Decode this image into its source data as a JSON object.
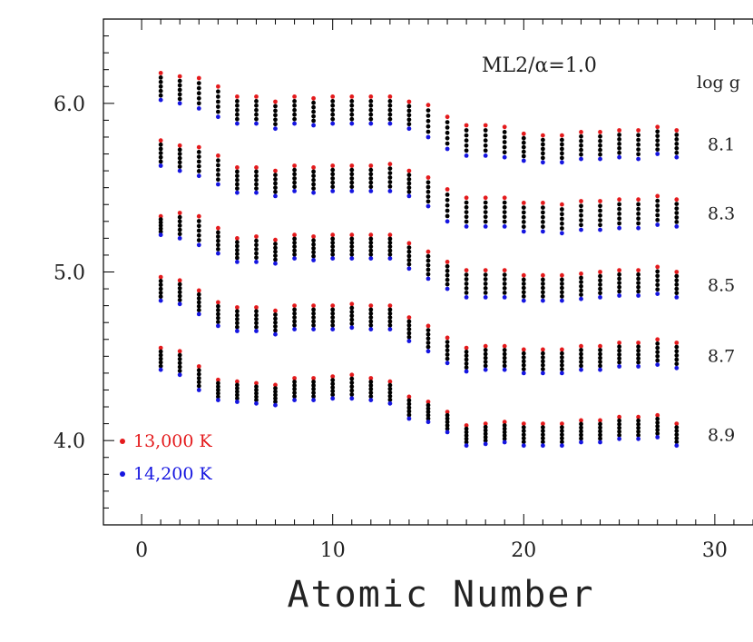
{
  "chart_data": {
    "type": "scatter",
    "annotation": "ML2/α=1.0",
    "xlabel": "Atomic Number",
    "ylabel": "",
    "xlim": [
      -2,
      32
    ],
    "ylim": [
      3.5,
      6.5
    ],
    "x_ticks": [
      "0",
      "10",
      "20",
      "30"
    ],
    "y_ticks": [
      "4.0",
      "5.0",
      "6.0"
    ],
    "right_header": "log g",
    "levels": [
      "8.1",
      "8.3",
      "8.5",
      "8.7",
      "8.9"
    ],
    "series": [
      {
        "name": "13,000 K",
        "color": "#e41a1c"
      },
      {
        "name": "14,200 K",
        "color": "#1515e0"
      }
    ],
    "intermediate_color": "#000000",
    "points_per_group": 7,
    "x": [
      1,
      2,
      3,
      4,
      5,
      6,
      7,
      8,
      9,
      10,
      11,
      12,
      13,
      14,
      15,
      16,
      17,
      18,
      19,
      20,
      21,
      22,
      23,
      24,
      25,
      26,
      27,
      28
    ],
    "groups": [
      {
        "log_g": "8.1",
        "red": [
          6.18,
          6.16,
          6.15,
          6.1,
          6.04,
          6.04,
          6.01,
          6.04,
          6.03,
          6.04,
          6.04,
          6.04,
          6.04,
          6.01,
          5.99,
          5.92,
          5.87,
          5.87,
          5.86,
          5.82,
          5.81,
          5.81,
          5.83,
          5.83,
          5.84,
          5.84,
          5.86,
          5.84
        ],
        "blue": [
          6.02,
          6.0,
          5.97,
          5.92,
          5.88,
          5.88,
          5.85,
          5.88,
          5.87,
          5.88,
          5.88,
          5.88,
          5.88,
          5.85,
          5.8,
          5.73,
          5.69,
          5.69,
          5.68,
          5.66,
          5.65,
          5.65,
          5.67,
          5.67,
          5.68,
          5.67,
          5.7,
          5.68
        ]
      },
      {
        "log_g": "8.3",
        "red": [
          5.78,
          5.75,
          5.74,
          5.69,
          5.62,
          5.62,
          5.6,
          5.63,
          5.62,
          5.63,
          5.63,
          5.63,
          5.64,
          5.6,
          5.56,
          5.49,
          5.44,
          5.44,
          5.44,
          5.41,
          5.41,
          5.4,
          5.42,
          5.42,
          5.43,
          5.43,
          5.45,
          5.43
        ],
        "blue": [
          5.63,
          5.6,
          5.57,
          5.52,
          5.47,
          5.47,
          5.45,
          5.48,
          5.47,
          5.48,
          5.48,
          5.48,
          5.48,
          5.45,
          5.39,
          5.3,
          5.27,
          5.27,
          5.27,
          5.24,
          5.24,
          5.23,
          5.25,
          5.25,
          5.26,
          5.26,
          5.28,
          5.27
        ]
      },
      {
        "log_g": "8.5",
        "red": [
          5.33,
          5.35,
          5.33,
          5.26,
          5.2,
          5.21,
          5.19,
          5.22,
          5.21,
          5.22,
          5.22,
          5.22,
          5.22,
          5.17,
          5.12,
          5.06,
          5.01,
          5.01,
          5.01,
          4.98,
          4.98,
          4.98,
          4.99,
          5.0,
          5.01,
          5.01,
          5.03,
          5.0
        ],
        "blue": [
          5.22,
          5.2,
          5.16,
          5.11,
          5.06,
          5.06,
          5.05,
          5.08,
          5.07,
          5.08,
          5.08,
          5.08,
          5.08,
          5.02,
          4.96,
          4.9,
          4.85,
          4.85,
          4.85,
          4.83,
          4.83,
          4.83,
          4.84,
          4.85,
          4.86,
          4.86,
          4.87,
          4.85
        ]
      },
      {
        "log_g": "8.7",
        "red": [
          4.97,
          4.95,
          4.89,
          4.82,
          4.79,
          4.79,
          4.77,
          4.8,
          4.8,
          4.8,
          4.81,
          4.8,
          4.8,
          4.73,
          4.68,
          4.61,
          4.55,
          4.56,
          4.56,
          4.54,
          4.54,
          4.54,
          4.56,
          4.56,
          4.58,
          4.58,
          4.6,
          4.58
        ],
        "blue": [
          4.83,
          4.81,
          4.75,
          4.68,
          4.65,
          4.65,
          4.63,
          4.66,
          4.66,
          4.66,
          4.67,
          4.66,
          4.66,
          4.59,
          4.53,
          4.46,
          4.41,
          4.42,
          4.42,
          4.4,
          4.4,
          4.4,
          4.42,
          4.42,
          4.44,
          4.44,
          4.45,
          4.43
        ]
      },
      {
        "log_g": "8.9",
        "red": [
          4.55,
          4.53,
          4.44,
          4.36,
          4.35,
          4.34,
          4.33,
          4.37,
          4.37,
          4.38,
          4.39,
          4.37,
          4.35,
          4.26,
          4.23,
          4.17,
          4.09,
          4.1,
          4.11,
          4.1,
          4.1,
          4.1,
          4.12,
          4.12,
          4.14,
          4.14,
          4.15,
          4.1
        ],
        "blue": [
          4.42,
          4.39,
          4.3,
          4.24,
          4.23,
          4.22,
          4.21,
          4.24,
          4.24,
          4.25,
          4.25,
          4.24,
          4.22,
          4.13,
          4.11,
          4.05,
          3.97,
          3.98,
          3.99,
          3.97,
          3.97,
          3.97,
          3.99,
          3.99,
          4.01,
          4.01,
          4.02,
          3.97
        ]
      }
    ],
    "grid": false,
    "legend_placement": "bottom-left"
  }
}
